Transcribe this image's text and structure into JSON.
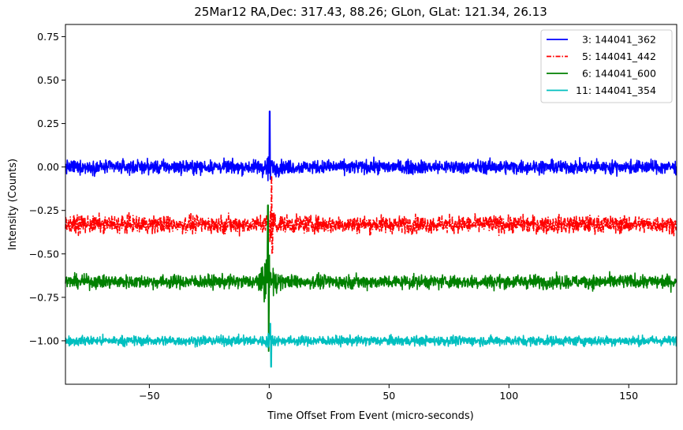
{
  "chart_data": {
    "type": "line",
    "title": "25Mar12 RA,Dec:  317.43,  88.26; GLon, GLat:  121.34,  26.13",
    "xlabel": "Time Offset From Event (micro-seconds)",
    "ylabel": "Intensity (Counts)",
    "xlim": [
      -85,
      170
    ],
    "ylim": [
      -1.25,
      0.82
    ],
    "xticks": [
      -50,
      0,
      50,
      100,
      150
    ],
    "xtick_labels": [
      "−50",
      "0",
      "50",
      "100",
      "150"
    ],
    "yticks": [
      0.75,
      0.5,
      0.25,
      0.0,
      -0.25,
      -0.5,
      -0.75,
      -1.0
    ],
    "ytick_labels": [
      "0.75",
      "0.50",
      "0.25",
      "0.00",
      "−0.25",
      "−0.50",
      "−0.75",
      "−1.00"
    ],
    "grid": false,
    "legend_position": "top-right",
    "series": [
      {
        "name": "  3: 144041_362",
        "color": "#0000ff",
        "style": "solid",
        "baseline": 0.0,
        "noise": 0.035,
        "spike_x": 0.2,
        "spike_max": 0.32,
        "spike_min": -0.07
      },
      {
        "name": "  5: 144041_442",
        "color": "#ff0000",
        "style": "dashdot",
        "baseline": -0.33,
        "noise": 0.045,
        "spike_x": 1.0,
        "spike_max": -0.05,
        "spike_min": -0.5
      },
      {
        "name": "  6: 144041_600",
        "color": "#008000",
        "style": "solid",
        "baseline": -0.66,
        "noise": 0.035,
        "spike_x": -0.5,
        "spike_max": -0.22,
        "spike_min": -1.06
      },
      {
        "name": "11: 144041_354",
        "color": "#00bfbf",
        "style": "solid",
        "baseline": -1.0,
        "noise": 0.025,
        "spike_x": 0.5,
        "spike_max": -0.9,
        "spike_min": -1.15
      }
    ]
  }
}
